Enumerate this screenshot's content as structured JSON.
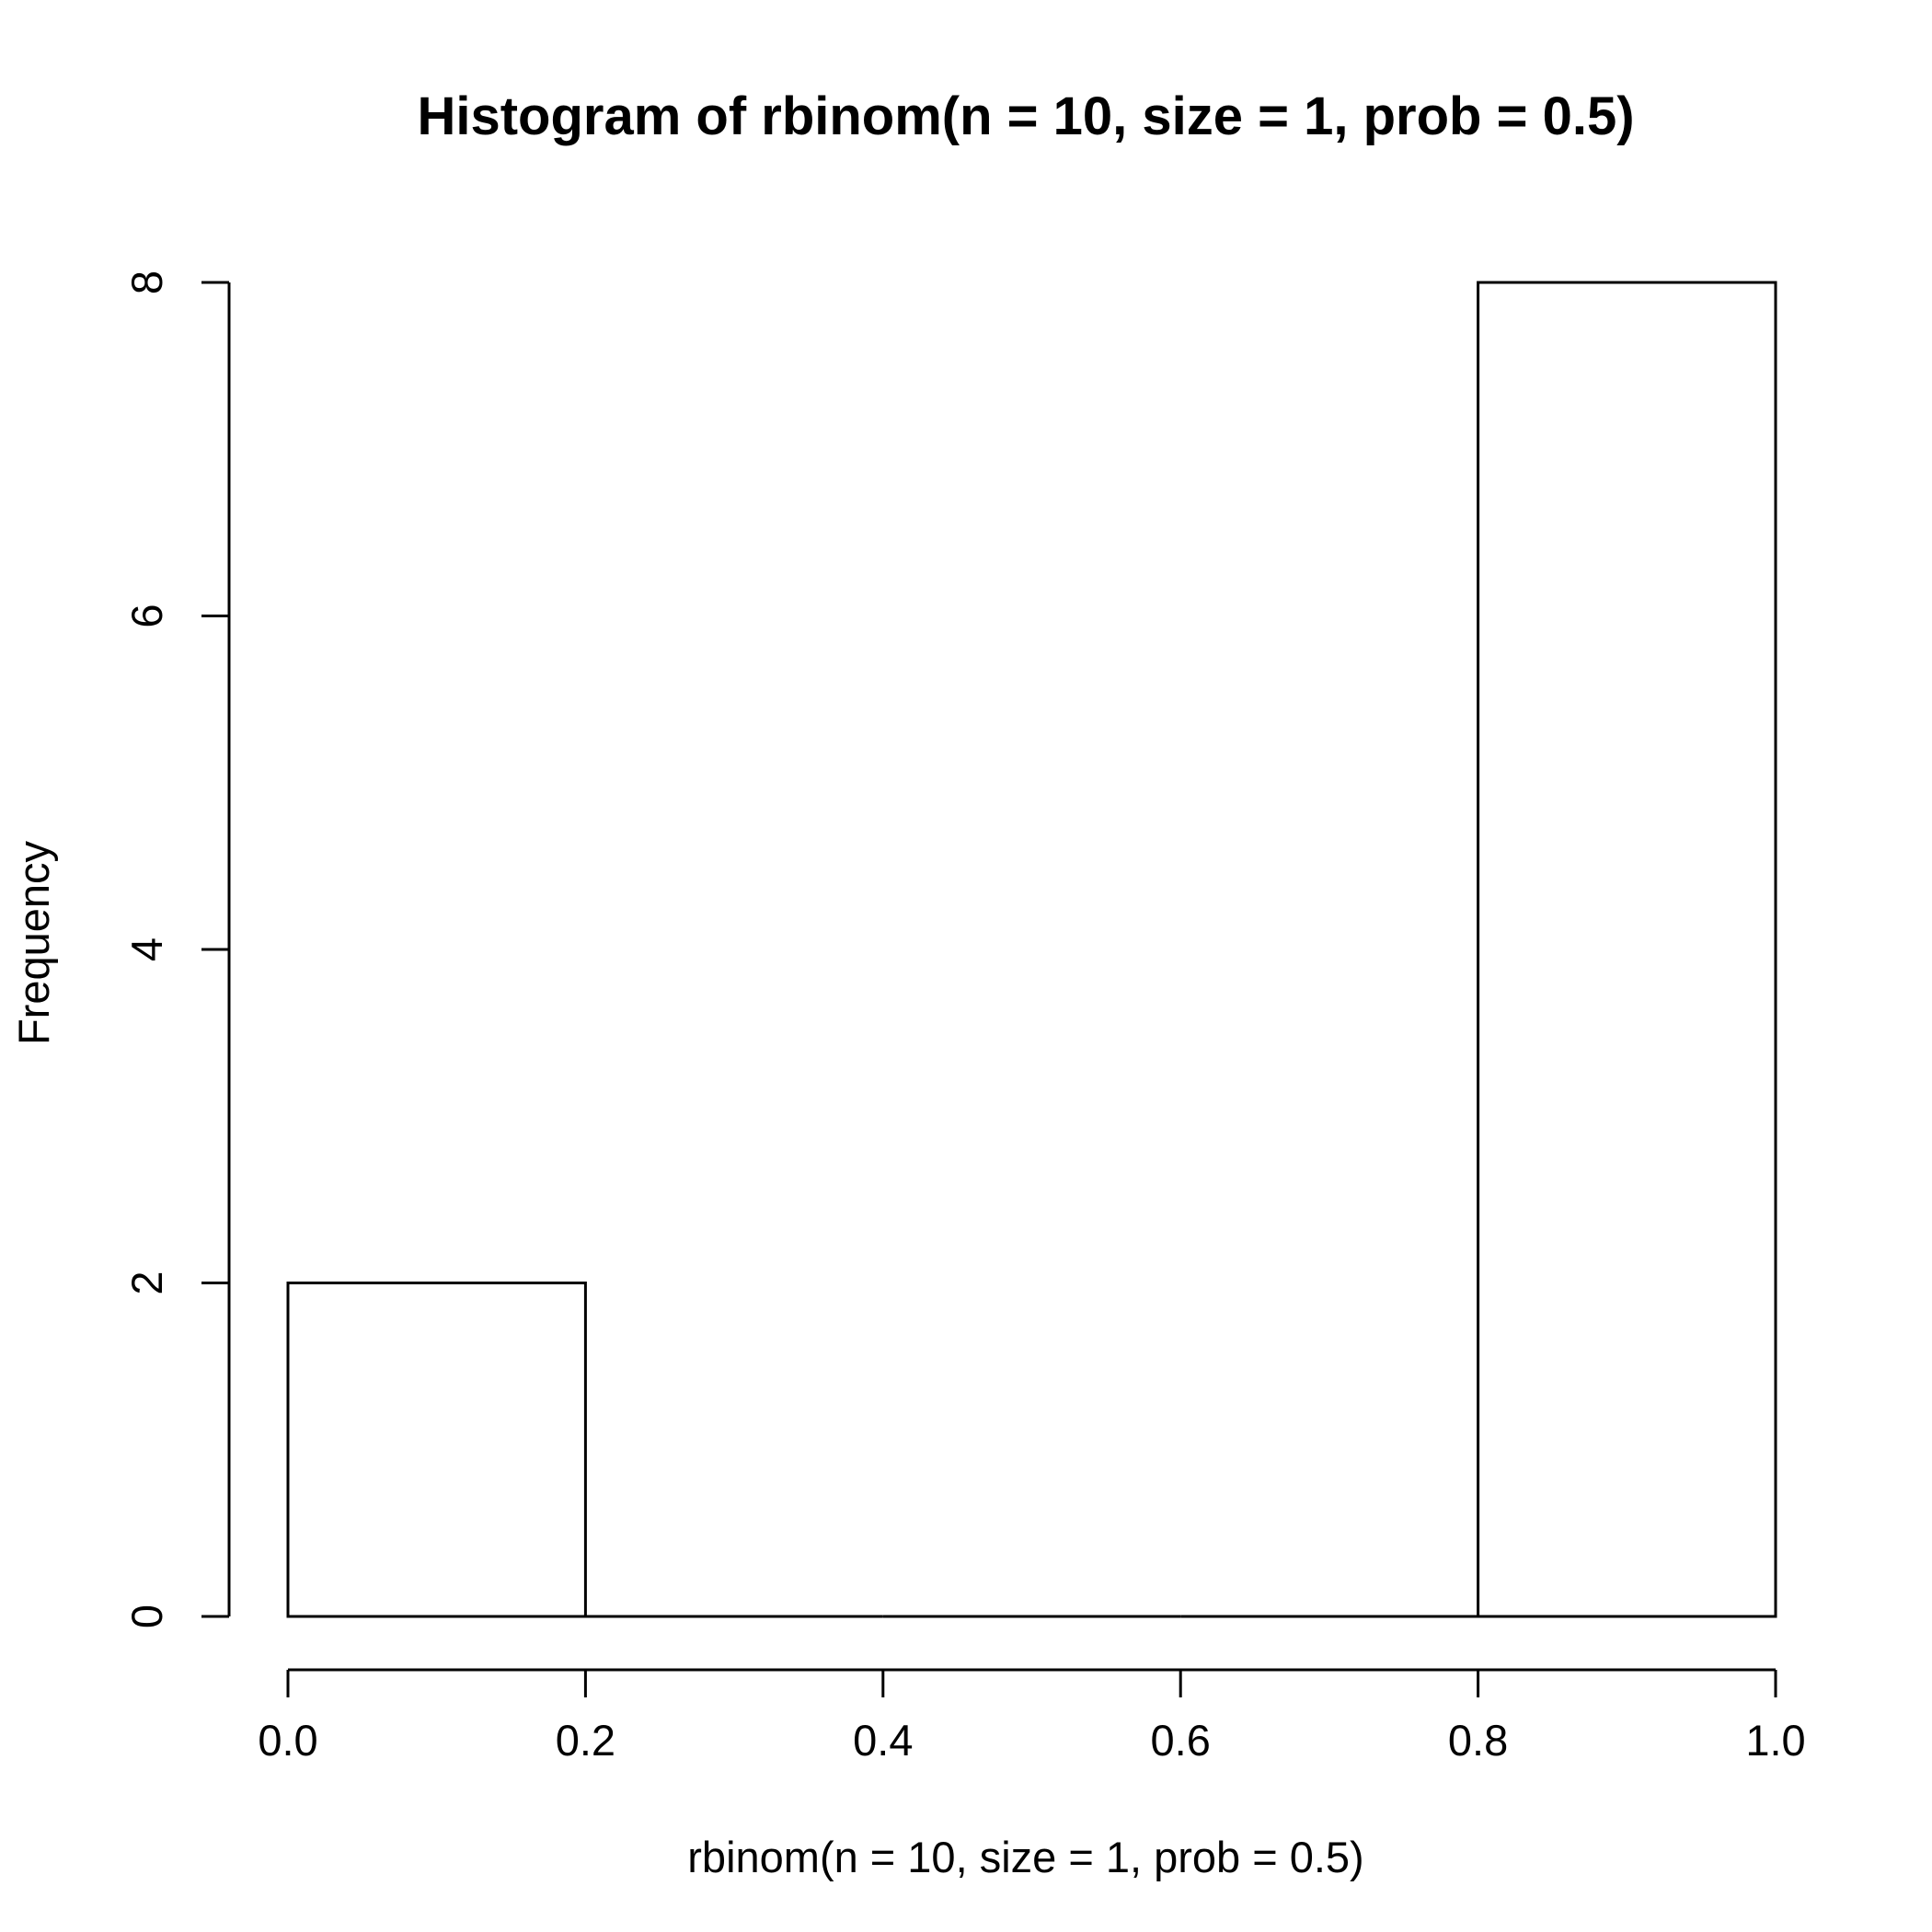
{
  "chart_data": {
    "type": "bar",
    "title": "Histogram of rbinom(n = 10, size = 1, prob = 0.5)",
    "xlabel": "rbinom(n = 10, size = 1, prob = 0.5)",
    "ylabel": "Frequency",
    "bins": [
      {
        "x0": 0.0,
        "x1": 0.2,
        "count": 2
      },
      {
        "x0": 0.2,
        "x1": 0.4,
        "count": 0
      },
      {
        "x0": 0.4,
        "x1": 0.6,
        "count": 0
      },
      {
        "x0": 0.6,
        "x1": 0.8,
        "count": 0
      },
      {
        "x0": 0.8,
        "x1": 1.0,
        "count": 8
      }
    ],
    "xlim": [
      0.0,
      1.0
    ],
    "ylim": [
      0,
      8
    ],
    "x_ticks": [
      "0.0",
      "0.2",
      "0.4",
      "0.6",
      "0.8",
      "1.0"
    ],
    "y_ticks": [
      "0",
      "2",
      "4",
      "6",
      "8"
    ],
    "grid": false,
    "bar_fill": "#ffffff",
    "bar_stroke": "#000000"
  }
}
